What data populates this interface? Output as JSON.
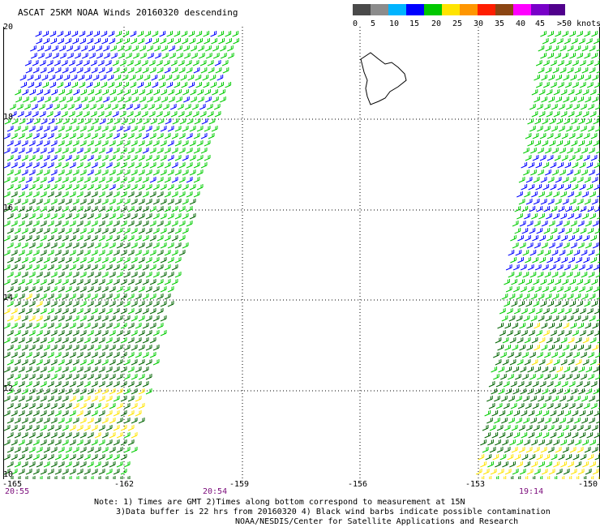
{
  "title": "ASCAT 25KM NOAA Winds 20160320 descending",
  "colors": {
    "grid": "#000000",
    "coast": "#000000",
    "time_label": "#7a0a7a"
  },
  "legend": {
    "unit": ">50 knots",
    "bins": [
      {
        "label": "0",
        "color": "#4a4a4a"
      },
      {
        "label": "5",
        "color": "#8c8c8c"
      },
      {
        "label": "10",
        "color": "#00b4ff"
      },
      {
        "label": "15",
        "color": "#0000ff"
      },
      {
        "label": "20",
        "color": "#00c800"
      },
      {
        "label": "25",
        "color": "#ffe400"
      },
      {
        "label": "30",
        "color": "#ff9600"
      },
      {
        "label": "35",
        "color": "#ff1e00"
      },
      {
        "label": "40",
        "color": "#8b4513"
      },
      {
        "label": "45",
        "color": "#ff00ff"
      },
      {
        "label": "",
        "color": "#7800c8"
      },
      {
        "label": "",
        "color": "#50008c"
      }
    ]
  },
  "map": {
    "lat_labels": [
      "20",
      "18",
      "16",
      "14",
      "12",
      "10"
    ],
    "lon_labels": [
      "-165",
      "-162",
      "-159",
      "-156",
      "-153",
      "-150"
    ],
    "lat_range": [
      10,
      20
    ],
    "lon_range": [
      -165,
      -150
    ],
    "land": [
      "Hawaii (Big Island)"
    ],
    "swaths": [
      {
        "side": "west",
        "time_label": "20:54",
        "edge_time_label": "20:55"
      },
      {
        "side": "east",
        "time_label": "19:14"
      }
    ],
    "wind_colors": {
      "blue": "#0000ff",
      "green": "#00cc00",
      "darkgreen": "#006400",
      "yellow": "#ffe400"
    }
  },
  "notes": [
    "Note: 1) Times are GMT 2)Times along bottom correspond to measurement at 15N",
    "3)Data buffer is 22 hrs from 20160320 4) Black wind barbs indicate possible contamination",
    "NOAA/NESDIS/Center for Satellite Applications and Research"
  ]
}
